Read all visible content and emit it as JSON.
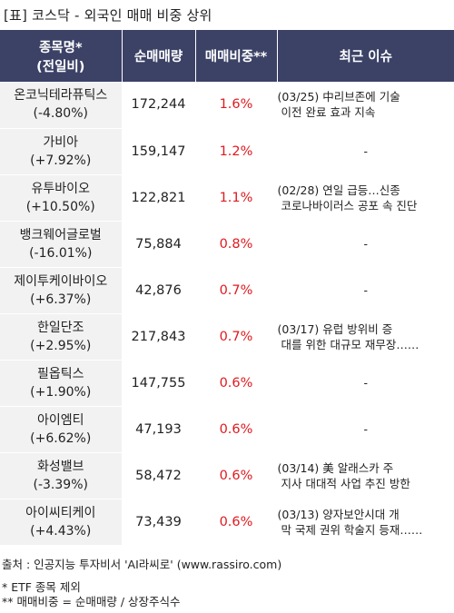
{
  "title": "[표] 코스닥 - 외국인 매매 비중 상위",
  "table": {
    "headers": {
      "name_line1": "종목명*",
      "name_line2": "(전일비)",
      "net_volume": "순매매량",
      "ratio": "매매비중**",
      "issue": "최근 이슈"
    },
    "rows": [
      {
        "name": "온코닉테라퓨틱스",
        "change": "(-4.80%)",
        "net_volume": "172,244",
        "ratio": "1.6%",
        "issue_line1": "(03/25) 中리브존에 기술",
        "issue_line2": "이전 완료 효과 지속"
      },
      {
        "name": "가비아",
        "change": "(+7.92%)",
        "net_volume": "159,147",
        "ratio": "1.2%",
        "issue_line1": "-",
        "issue_line2": ""
      },
      {
        "name": "유투바이오",
        "change": "(+10.50%)",
        "net_volume": "122,821",
        "ratio": "1.1%",
        "issue_line1": "(02/28) 연일 급등…신종",
        "issue_line2": "코로나바이러스 공포 속 진단"
      },
      {
        "name": "뱅크웨어글로벌",
        "change": "(-16.01%)",
        "net_volume": "75,884",
        "ratio": "0.8%",
        "issue_line1": "-",
        "issue_line2": ""
      },
      {
        "name": "제이투케이바이오",
        "change": "(+6.37%)",
        "net_volume": "42,876",
        "ratio": "0.7%",
        "issue_line1": "-",
        "issue_line2": ""
      },
      {
        "name": "한일단조",
        "change": "(+2.95%)",
        "net_volume": "217,843",
        "ratio": "0.7%",
        "issue_line1": "(03/17) 유럽 방위비 증",
        "issue_line2": "대를 위한 대규모 재무장……"
      },
      {
        "name": "필옵틱스",
        "change": "(+1.90%)",
        "net_volume": "147,755",
        "ratio": "0.6%",
        "issue_line1": "-",
        "issue_line2": ""
      },
      {
        "name": "아이엠티",
        "change": "(+6.62%)",
        "net_volume": "47,193",
        "ratio": "0.6%",
        "issue_line1": "-",
        "issue_line2": ""
      },
      {
        "name": "화성밸브",
        "change": "(-3.39%)",
        "net_volume": "58,472",
        "ratio": "0.6%",
        "issue_line1": "(03/14) 美 알래스카 주",
        "issue_line2": "지사 대대적 사업 추진 방한"
      },
      {
        "name": "아이씨티케이",
        "change": "(+4.43%)",
        "net_volume": "73,439",
        "ratio": "0.6%",
        "issue_line1": "(03/13) 양자보안시대 개",
        "issue_line2": "막 국제 권위 학술지 등재……"
      }
    ]
  },
  "footer": {
    "source": "출처 : 인공지능 투자비서 'AI라씨로' (www.rassiro.com)",
    "note1": "* ETF 종목 제외",
    "note2": "** 매매비중 = 순매매량 / 상장주식수"
  },
  "colors": {
    "header_bg": "#3c4266",
    "name_cell_bg": "#f2f2f2",
    "ratio_text": "#e0191e"
  }
}
